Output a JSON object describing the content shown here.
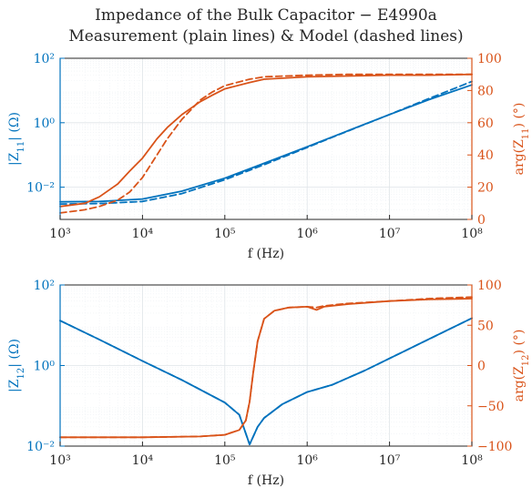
{
  "figure": {
    "title_line1": "Impedance of the Bulk Capacitor − E4990a",
    "title_line2": "Measurement (plain lines) & Model (dashed lines)"
  },
  "colors": {
    "magnitude": "#0072BD",
    "phase": "#D95319",
    "text": "#262626"
  },
  "chart_data": [
    {
      "type": "line",
      "xscale": "log",
      "yscale_left": "log",
      "xlim": [
        1000,
        100000000
      ],
      "ylim_left": [
        0.001,
        100
      ],
      "ylim_right": [
        0,
        100
      ],
      "grid": true,
      "xlabel": "f (Hz)",
      "ylabel_left": "|Z11| (Ω)",
      "ylabel_right": "arg(Z11) (°)",
      "x_ticks": [
        "10^3",
        "10^4",
        "10^5",
        "10^6",
        "10^7",
        "10^8"
      ],
      "y_left_ticks": [
        "10^-2",
        "10^0",
        "10^2"
      ],
      "y_right_ticks": [
        "0",
        "20",
        "40",
        "60",
        "80",
        "100"
      ],
      "series": [
        {
          "role": "measurement",
          "axis": "left",
          "style": "solid",
          "x": [
            1000,
            3000,
            10000,
            30000,
            100000,
            300000,
            1000000,
            3000000,
            10000000,
            30000000,
            100000000
          ],
          "y": [
            0.0035,
            0.0036,
            0.0043,
            0.0075,
            0.019,
            0.055,
            0.18,
            0.54,
            1.8,
            5.2,
            15
          ]
        },
        {
          "role": "model",
          "axis": "left",
          "style": "dashed",
          "x": [
            1000,
            3000,
            10000,
            30000,
            100000,
            300000,
            1000000,
            3000000,
            10000000,
            30000000,
            100000000
          ],
          "y": [
            0.003,
            0.0031,
            0.0036,
            0.0063,
            0.017,
            0.05,
            0.17,
            0.53,
            1.8,
            5.6,
            19
          ]
        },
        {
          "role": "measurement",
          "axis": "right",
          "style": "solid",
          "x": [
            1000,
            2000,
            3000,
            5000,
            7000,
            10000,
            15000,
            20000,
            30000,
            50000,
            70000,
            100000,
            200000,
            300000,
            1000000,
            3000000,
            10000000,
            30000000,
            100000000
          ],
          "y": [
            8,
            10,
            14,
            22,
            30,
            38,
            50,
            57,
            65,
            73,
            77,
            81,
            85,
            87,
            88.5,
            89,
            89.5,
            89.5,
            90
          ]
        },
        {
          "role": "model",
          "axis": "right",
          "style": "dashed",
          "x": [
            1000,
            2000,
            3000,
            5000,
            7000,
            10000,
            15000,
            20000,
            30000,
            50000,
            70000,
            100000,
            200000,
            300000,
            1000000,
            3000000,
            10000000,
            30000000,
            100000000
          ],
          "y": [
            4,
            6,
            8,
            12,
            17,
            26,
            40,
            50,
            62,
            74,
            79,
            83,
            87,
            88.5,
            89.5,
            90,
            90,
            90,
            90
          ]
        }
      ]
    },
    {
      "type": "line",
      "xscale": "log",
      "yscale_left": "log",
      "xlim": [
        1000,
        100000000
      ],
      "ylim_left": [
        0.01,
        100
      ],
      "ylim_right": [
        -100,
        100
      ],
      "grid": true,
      "xlabel": "f (Hz)",
      "ylabel_left": "|Z12| (Ω)",
      "ylabel_right": "arg(Z12) (°)",
      "x_ticks": [
        "10^3",
        "10^4",
        "10^5",
        "10^6",
        "10^7",
        "10^8"
      ],
      "y_left_ticks": [
        "10^-2",
        "10^0",
        "10^2"
      ],
      "y_right_ticks": [
        "-100",
        "-50",
        "0",
        "50",
        "100"
      ],
      "series": [
        {
          "role": "measurement",
          "axis": "left",
          "style": "solid",
          "x": [
            1000,
            3000,
            10000,
            30000,
            100000,
            150000,
            200000,
            250000,
            300000,
            500000,
            1000000,
            2000000,
            5000000,
            10000000,
            30000000,
            100000000
          ],
          "y": [
            13,
            4.4,
            1.3,
            0.44,
            0.12,
            0.06,
            0.011,
            0.03,
            0.05,
            0.11,
            0.22,
            0.33,
            0.75,
            1.5,
            4.5,
            15
          ]
        },
        {
          "role": "model",
          "axis": "left",
          "style": "dashed",
          "x": [
            1000,
            3000,
            10000,
            30000,
            100000,
            150000,
            200000,
            250000,
            300000,
            500000,
            1000000,
            2000000,
            5000000,
            10000000,
            30000000,
            100000000
          ],
          "y": [
            13,
            4.4,
            1.3,
            0.44,
            0.12,
            0.06,
            0.011,
            0.03,
            0.05,
            0.11,
            0.22,
            0.33,
            0.75,
            1.5,
            4.5,
            15
          ]
        },
        {
          "role": "measurement",
          "axis": "right",
          "style": "solid",
          "x": [
            1000,
            10000,
            50000,
            100000,
            150000,
            180000,
            200000,
            220000,
            250000,
            300000,
            400000,
            600000,
            1000000,
            1300000,
            1600000,
            3000000,
            10000000,
            30000000,
            100000000
          ],
          "y": [
            -89,
            -89,
            -88,
            -86,
            -80,
            -68,
            -45,
            -10,
            30,
            58,
            68,
            72,
            73,
            69,
            73,
            76,
            80,
            82,
            83
          ]
        },
        {
          "role": "model",
          "axis": "right",
          "style": "dashed",
          "x": [
            1000,
            10000,
            50000,
            100000,
            150000,
            180000,
            200000,
            220000,
            250000,
            300000,
            400000,
            600000,
            1000000,
            1300000,
            1600000,
            3000000,
            10000000,
            30000000,
            100000000
          ],
          "y": [
            -89,
            -89,
            -88,
            -86,
            -80,
            -68,
            -45,
            -10,
            30,
            58,
            68,
            72,
            73,
            72,
            74,
            77,
            80,
            83,
            85
          ]
        }
      ]
    }
  ]
}
